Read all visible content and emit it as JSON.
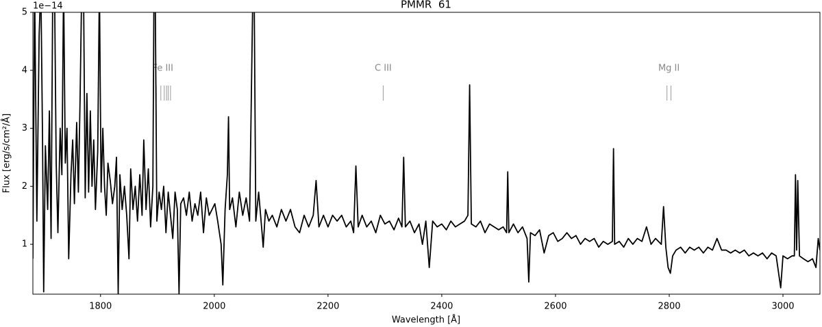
{
  "chart_data": {
    "type": "line",
    "title": "PMMR  61",
    "x_label": "Wavelength [Å]",
    "y_label": "Flux [erg/s/cm²/Å]",
    "y_offset": "1e−14",
    "color": "#000000",
    "x": [
      1681,
      1684,
      1688,
      1692,
      1695,
      1698,
      1700,
      1703,
      1707,
      1710,
      1713,
      1716,
      1719,
      1722,
      1725,
      1729,
      1732,
      1735,
      1738,
      1741,
      1744,
      1748,
      1751,
      1754,
      1758,
      1761,
      1764,
      1767,
      1770,
      1773,
      1776,
      1779,
      1782,
      1785,
      1788,
      1791,
      1795,
      1798,
      1801,
      1804,
      1807,
      1810,
      1813,
      1817,
      1821,
      1825,
      1828,
      1831,
      1834,
      1838,
      1842,
      1846,
      1850,
      1853,
      1857,
      1861,
      1865,
      1869,
      1873,
      1876,
      1880,
      1884,
      1888,
      1892,
      1894,
      1896,
      1899,
      1903,
      1907,
      1911,
      1915,
      1919,
      1923,
      1927,
      1931,
      1935,
      1938,
      1941,
      1946,
      1951,
      1956,
      1961,
      1966,
      1971,
      1976,
      1981,
      1986,
      1991,
      1996,
      2001,
      2006,
      2012,
      2015,
      2019,
      2023,
      2025,
      2027,
      2032,
      2038,
      2044,
      2050,
      2056,
      2062,
      2068,
      2070,
      2073,
      2078,
      2084,
      2086,
      2090,
      2096,
      2102,
      2110,
      2118,
      2126,
      2134,
      2142,
      2150,
      2158,
      2166,
      2174,
      2179,
      2184,
      2192,
      2200,
      2208,
      2216,
      2224,
      2232,
      2240,
      2245,
      2249,
      2253,
      2260,
      2268,
      2276,
      2284,
      2292,
      2300,
      2308,
      2316,
      2324,
      2330,
      2333,
      2336,
      2344,
      2352,
      2360,
      2366,
      2372,
      2378,
      2384,
      2392,
      2400,
      2408,
      2416,
      2424,
      2432,
      2440,
      2446,
      2449,
      2452,
      2460,
      2468,
      2476,
      2484,
      2492,
      2500,
      2508,
      2514,
      2516,
      2518,
      2526,
      2534,
      2542,
      2550,
      2553,
      2556,
      2564,
      2572,
      2580,
      2588,
      2596,
      2604,
      2612,
      2620,
      2628,
      2636,
      2644,
      2652,
      2660,
      2668,
      2676,
      2684,
      2692,
      2700,
      2702,
      2704,
      2712,
      2720,
      2728,
      2736,
      2744,
      2752,
      2760,
      2768,
      2776,
      2786,
      2790,
      2794,
      2798,
      2802,
      2806,
      2812,
      2820,
      2828,
      2836,
      2844,
      2852,
      2860,
      2868,
      2876,
      2884,
      2892,
      2900,
      2908,
      2916,
      2924,
      2932,
      2940,
      2948,
      2956,
      2964,
      2972,
      2980,
      2988,
      2996,
      3000,
      3008,
      3016,
      3020,
      3022,
      3024,
      3026,
      3029,
      3036,
      3044,
      3052,
      3058,
      3062,
      3065
    ],
    "values": [
      0.75,
      5.5,
      1.4,
      4.6,
      5.5,
      2.8,
      0.18,
      2.7,
      1.6,
      3.3,
      1.1,
      5.5,
      5.5,
      2.4,
      1.2,
      3.0,
      2.2,
      5.5,
      2.4,
      3.0,
      0.75,
      2.2,
      2.8,
      1.7,
      3.1,
      1.9,
      3.5,
      5.5,
      5.5,
      1.8,
      3.6,
      1.9,
      3.3,
      2.0,
      2.8,
      1.6,
      2.6,
      5.5,
      1.9,
      3.0,
      2.0,
      1.5,
      2.4,
      2.1,
      1.7,
      2.0,
      2.5,
      0.15,
      2.2,
      1.6,
      2.0,
      1.5,
      0.75,
      2.3,
      1.6,
      2.0,
      1.4,
      2.2,
      1.5,
      2.8,
      1.6,
      2.3,
      1.3,
      2.0,
      5.5,
      5.5,
      1.4,
      1.9,
      1.6,
      2.0,
      1.2,
      1.9,
      1.5,
      1.1,
      1.9,
      1.6,
      0.15,
      1.7,
      1.8,
      1.5,
      1.9,
      1.4,
      1.7,
      1.5,
      1.9,
      1.2,
      1.8,
      1.5,
      1.6,
      1.7,
      1.4,
      1.0,
      0.3,
      1.6,
      2.2,
      3.2,
      1.6,
      1.8,
      1.3,
      1.9,
      1.5,
      1.8,
      1.4,
      5.5,
      5.5,
      1.4,
      1.9,
      1.2,
      0.95,
      1.6,
      1.4,
      1.5,
      1.3,
      1.6,
      1.4,
      1.6,
      1.3,
      1.2,
      1.5,
      1.3,
      1.5,
      2.1,
      1.3,
      1.5,
      1.3,
      1.5,
      1.4,
      1.5,
      1.3,
      1.4,
      1.2,
      2.35,
      1.3,
      1.5,
      1.3,
      1.4,
      1.2,
      1.5,
      1.35,
      1.4,
      1.25,
      1.45,
      1.3,
      2.5,
      1.3,
      1.4,
      1.2,
      1.35,
      1.0,
      1.4,
      0.6,
      1.4,
      1.3,
      1.35,
      1.25,
      1.4,
      1.3,
      1.35,
      1.4,
      1.5,
      3.75,
      1.35,
      1.3,
      1.4,
      1.2,
      1.35,
      1.3,
      1.25,
      1.3,
      1.2,
      2.25,
      1.2,
      1.35,
      1.2,
      1.3,
      1.1,
      0.35,
      1.2,
      1.15,
      1.25,
      0.85,
      1.15,
      1.2,
      1.05,
      1.1,
      1.2,
      1.1,
      1.15,
      1.0,
      1.1,
      1.05,
      1.1,
      0.95,
      1.05,
      1.0,
      1.05,
      2.65,
      1.0,
      1.05,
      0.95,
      1.1,
      1.0,
      1.1,
      1.05,
      1.3,
      1.0,
      1.1,
      1.0,
      1.65,
      0.95,
      0.6,
      0.5,
      0.8,
      0.9,
      0.95,
      0.85,
      0.95,
      0.9,
      0.95,
      0.85,
      0.95,
      0.9,
      1.1,
      0.9,
      0.9,
      0.85,
      0.9,
      0.85,
      0.9,
      0.8,
      0.85,
      0.8,
      0.85,
      0.75,
      0.85,
      0.8,
      0.25,
      0.8,
      0.75,
      0.8,
      0.8,
      2.2,
      0.9,
      2.1,
      0.8,
      0.75,
      0.7,
      0.75,
      0.6,
      1.1,
      0.9
    ],
    "xlim": [
      1681,
      3065
    ],
    "ylim": [
      0.14,
      5.0
    ],
    "xticks": [
      1800,
      2000,
      2200,
      2400,
      2600,
      2800,
      3000
    ],
    "yticks": [
      1,
      2,
      3,
      4,
      5
    ],
    "annotations": [
      {
        "label": "Fe III",
        "lines": [
          1893,
          1898,
          1906,
          1912,
          1916,
          1919,
          1923
        ]
      },
      {
        "label": "C III",
        "lines": [
          2297
        ]
      },
      {
        "label": "Mg II",
        "lines": [
          2796,
          2803
        ]
      }
    ]
  }
}
